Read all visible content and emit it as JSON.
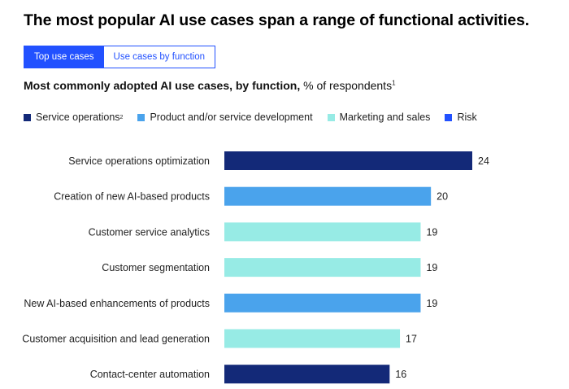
{
  "header": {
    "title": "The most popular AI use cases span a range of functional activities."
  },
  "tabs": [
    {
      "label": "Top use cases",
      "active": true
    },
    {
      "label": "Use cases by function",
      "active": false
    }
  ],
  "subtitle": {
    "bold": "Most commonly adopted AI use cases, by function,",
    "rest": " % of respondents",
    "footnote": "1"
  },
  "colors": {
    "service_operations": "#132978",
    "product_development": "#4aa3ec",
    "marketing_sales": "#97ebe5",
    "risk": "#2251ff"
  },
  "chart_data": {
    "type": "bar",
    "orientation": "horizontal",
    "title": "Most commonly adopted AI use cases, by function, % of respondents",
    "legend": [
      {
        "name": "Service operations",
        "footnote": "2",
        "color": "#132978"
      },
      {
        "name": "Product and/or service development",
        "footnote": "",
        "color": "#4aa3ec"
      },
      {
        "name": "Marketing and sales",
        "footnote": "",
        "color": "#97ebe5"
      },
      {
        "name": "Risk",
        "footnote": "",
        "color": "#2251ff"
      }
    ],
    "categories": [
      "Service operations optimization",
      "Creation of new AI-based products",
      "Customer service analytics",
      "Customer segmentation",
      "New AI-based enhancements of products",
      "Customer acquisition and lead generation",
      "Contact-center automation"
    ],
    "values": [
      24,
      20,
      19,
      19,
      19,
      17,
      16
    ],
    "series_index": [
      0,
      1,
      2,
      2,
      1,
      2,
      0
    ],
    "xlim": [
      0,
      24
    ]
  }
}
